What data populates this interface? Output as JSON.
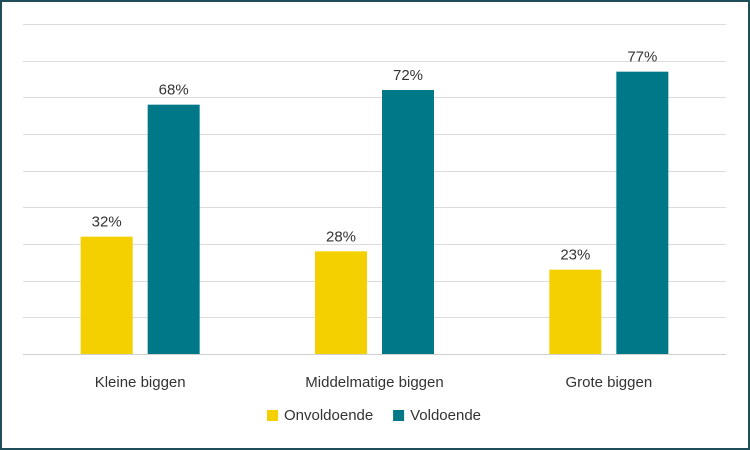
{
  "chart_data": {
    "type": "bar",
    "categories": [
      "Kleine biggen",
      "Middelmatige biggen",
      "Grote biggen"
    ],
    "series": [
      {
        "name": "Onvoldoende",
        "values": [
          32,
          28,
          23
        ],
        "labels": [
          "32%",
          "28%",
          "23%"
        ],
        "color": "#f5d000"
      },
      {
        "name": "Voldoende",
        "values": [
          68,
          72,
          77
        ],
        "labels": [
          "68%",
          "72%",
          "77%"
        ],
        "color": "#007887"
      }
    ],
    "title": "",
    "xlabel": "",
    "ylabel": "",
    "ylim": [
      0,
      90
    ],
    "grid": true,
    "y_axis_labels_shown": false,
    "legend_position": "bottom"
  }
}
